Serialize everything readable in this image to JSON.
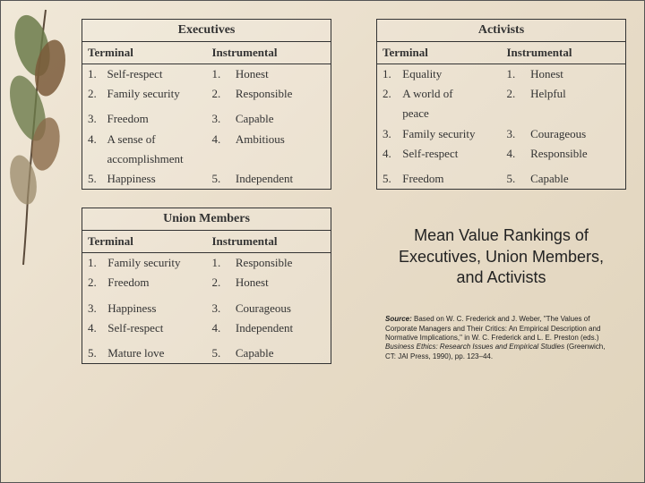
{
  "tables": {
    "executives": {
      "title": "Executives",
      "col1": "Terminal",
      "col2": "Instrumental",
      "rows": [
        {
          "n1": "1.",
          "t": "Self-respect",
          "n2": "1.",
          "i": "Honest"
        },
        {
          "n1": "2.",
          "t": "Family security",
          "n2": "2.",
          "i": "Responsible"
        },
        {
          "sp": true
        },
        {
          "n1": "3.",
          "t": "Freedom",
          "n2": "3.",
          "i": "Capable"
        },
        {
          "n1": "4.",
          "t": "A sense of",
          "n2": "4.",
          "i": "Ambitious"
        },
        {
          "n1": "",
          "t": "accomplishment",
          "n2": "",
          "i": ""
        },
        {
          "n1": "5.",
          "t": "Happiness",
          "n2": "5.",
          "i": "Independent"
        }
      ]
    },
    "activists": {
      "title": "Activists",
      "col1": "Terminal",
      "col2": "Instrumental",
      "rows": [
        {
          "n1": "1.",
          "t": "Equality",
          "n2": "1.",
          "i": "Honest"
        },
        {
          "n1": "2.",
          "t": "A world of",
          "n2": "2.",
          "i": "Helpful"
        },
        {
          "n1": "",
          "t": "peace",
          "n2": "",
          "i": ""
        },
        {
          "n1": "3.",
          "t": "Family security",
          "n2": "3.",
          "i": "Courageous"
        },
        {
          "n1": "4.",
          "t": "Self-respect",
          "n2": "4.",
          "i": "Responsible"
        },
        {
          "sp": true
        },
        {
          "n1": "5.",
          "t": "Freedom",
          "n2": "5.",
          "i": "Capable"
        }
      ]
    },
    "union": {
      "title": "Union Members",
      "col1": "Terminal",
      "col2": "Instrumental",
      "rows": [
        {
          "n1": "1.",
          "t": "Family security",
          "n2": "1.",
          "i": "Responsible"
        },
        {
          "n1": "2.",
          "t": "Freedom",
          "n2": "2.",
          "i": "Honest"
        },
        {
          "sp": true
        },
        {
          "n1": "3.",
          "t": "Happiness",
          "n2": "3.",
          "i": "Courageous"
        },
        {
          "n1": "4.",
          "t": "Self-respect",
          "n2": "4.",
          "i": "Independent"
        },
        {
          "sp": true
        },
        {
          "n1": "5.",
          "t": "Mature love",
          "n2": "5.",
          "i": "Capable"
        }
      ]
    }
  },
  "heading": "Mean Value Rankings of Executives, Union Members, and Activists",
  "source": {
    "label": "Source:",
    "pre": " Based on W. C. Frederick and J. Weber, \"The Values of Corporate Managers and Their Critics: An Empirical Description and Normative Implications,\" in W. C. Frederick and L. E. Preston (eds.) ",
    "book": "Business Ethics: Research Issues and Empirical Studies",
    "post": " (Greenwich, CT: JAI Press, 1990), pp. 123–44."
  },
  "colors": {
    "leaf_green": "#6b7a4a",
    "leaf_brown": "#7a5a3a",
    "stem": "#5a4a3a"
  }
}
